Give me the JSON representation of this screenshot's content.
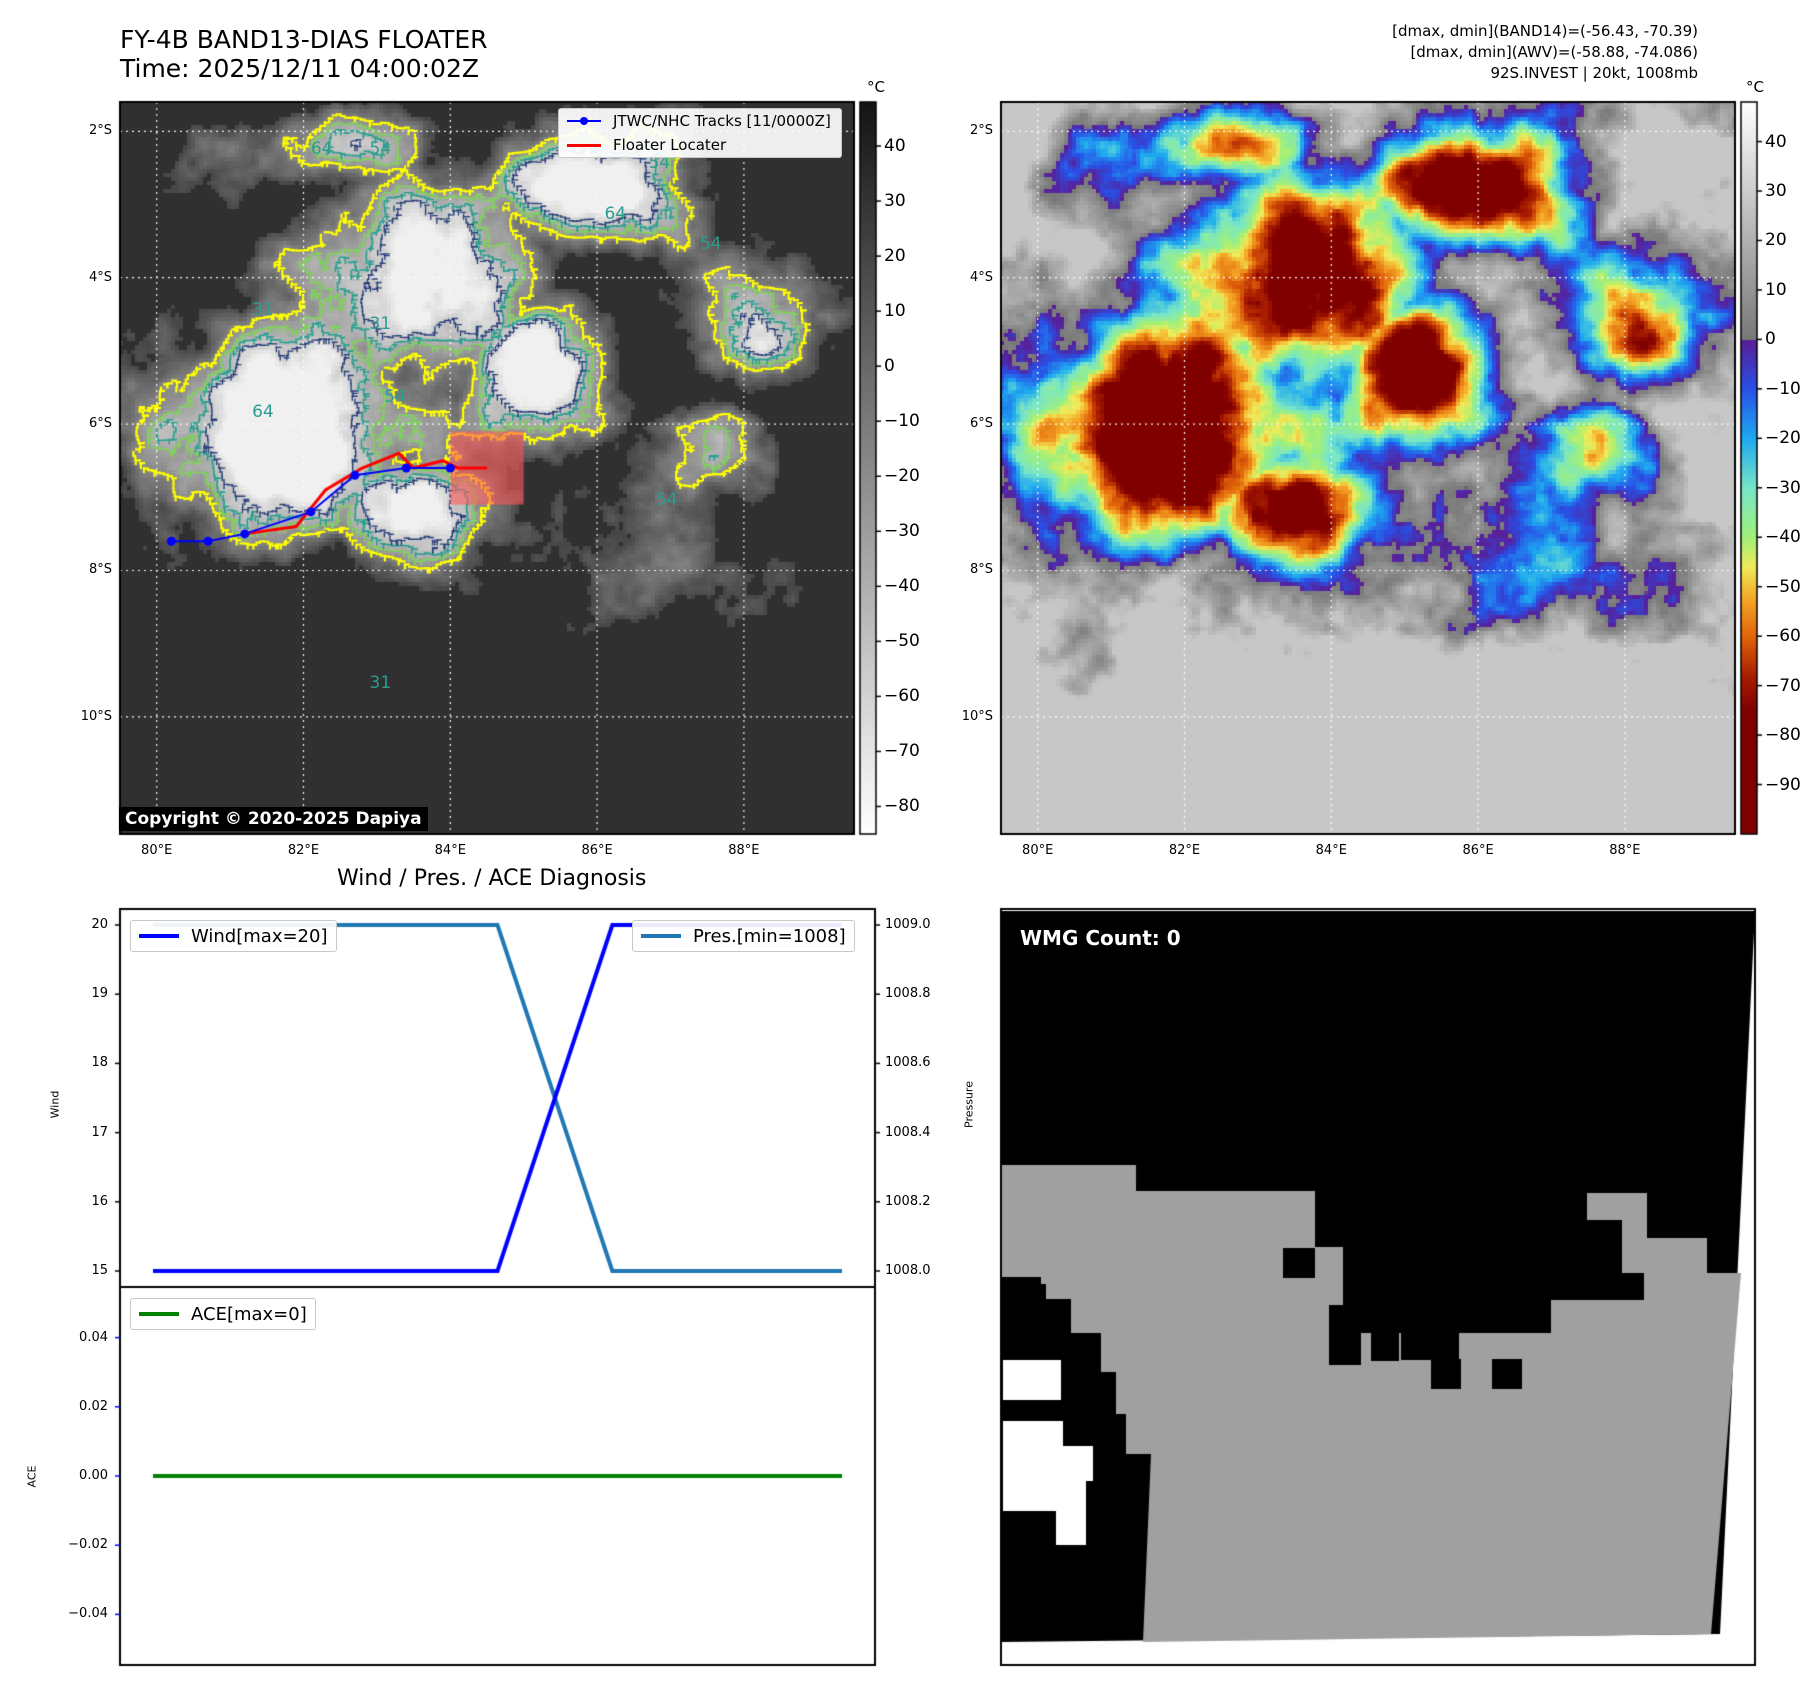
{
  "header": {
    "title_line1": "FY-4B BAND13-DIAS FLOATER",
    "title_line2": "Time: 2025/12/11 04:00:02Z",
    "info_line1": "[dmax, dmin](BAND14)=(-56.43, -70.39)",
    "info_line2": "[dmax, dmin](AWV)=(-58.88, -74.086)",
    "info_line3": "92S.INVEST | 20kt, 1008mb"
  },
  "map": {
    "lon_ticks": [
      "80°E",
      "82°E",
      "84°E",
      "86°E",
      "88°E"
    ],
    "lat_ticks": [
      "2°S",
      "4°S",
      "6°S",
      "8°S",
      "10°S"
    ],
    "colorbar_unit": "°C",
    "copyright": "Copyright © 2020-2025 Dapiya",
    "contour_labels": [
      "64",
      "54",
      "31"
    ],
    "legend": {
      "track_label": "JTWC/NHC Tracks [11/0000Z]",
      "floater_label": "Floater Locater"
    },
    "track_points": [
      [
        80.2,
        -7.6
      ],
      [
        80.7,
        -7.6
      ],
      [
        81.2,
        -7.5
      ],
      [
        82.1,
        -7.2
      ],
      [
        82.7,
        -6.7
      ],
      [
        83.4,
        -6.6
      ],
      [
        84.0,
        -6.6
      ]
    ],
    "floater_path": [
      [
        81.2,
        -7.5
      ],
      [
        81.9,
        -7.4
      ],
      [
        82.3,
        -6.9
      ],
      [
        82.8,
        -6.6
      ],
      [
        83.3,
        -6.4
      ],
      [
        83.5,
        -6.6
      ],
      [
        83.9,
        -6.5
      ],
      [
        84.1,
        -6.6
      ],
      [
        84.5,
        -6.6
      ]
    ],
    "floater_box": {
      "lon": [
        84.0,
        85.0
      ],
      "lat": [
        -6.1,
        -7.1
      ]
    },
    "colors": {
      "track": "#0000ff",
      "floater": "#ff0000",
      "contour_yellow": "#ffff00",
      "contour_green": "#7fd35a",
      "contour_teal": "#27a08e",
      "contour_navy": "#29407a"
    }
  },
  "colorbar_left": {
    "ticks": [
      "40",
      "30",
      "20",
      "10",
      "0",
      "−10",
      "−20",
      "−30",
      "−40",
      "−50",
      "−60",
      "−70",
      "−80"
    ]
  },
  "colorbar_right": {
    "ticks": [
      "40",
      "30",
      "20",
      "10",
      "0",
      "−10",
      "−20",
      "−30",
      "−40",
      "−50",
      "−60",
      "−70",
      "−80",
      "−90"
    ]
  },
  "diagnosis": {
    "title": "Wind / Pres. / ACE Diagnosis"
  },
  "chart_data": [
    {
      "type": "line",
      "title": "Wind / Pres. / ACE Diagnosis",
      "ylabel": "Wind",
      "y2label": "Pressure",
      "ylim": [
        15,
        20
      ],
      "y2lim": [
        1008.0,
        1009.0
      ],
      "y_ticks": [
        "20",
        "19",
        "18",
        "17",
        "16",
        "15"
      ],
      "y2_ticks": [
        "1009.0",
        "1008.8",
        "1008.6",
        "1008.4",
        "1008.2",
        "1008.0"
      ],
      "x": [
        0,
        1,
        2,
        3,
        4,
        5,
        6
      ],
      "series": [
        {
          "name": "Wind[max=20]",
          "axis": "left",
          "color": "#0000ff",
          "values": [
            15,
            15,
            15,
            15,
            20,
            20,
            20
          ]
        },
        {
          "name": "Pres.[min=1008]",
          "axis": "right",
          "color": "#1f77b4",
          "values": [
            1009,
            1009,
            1009,
            1009,
            1008,
            1008,
            1008
          ]
        }
      ]
    },
    {
      "type": "line",
      "ylabel": "ACE",
      "ylim": [
        -0.05,
        0.05
      ],
      "y_ticks": [
        "0.04",
        "0.02",
        "0.00",
        "−0.02",
        "−0.04"
      ],
      "x": [
        0,
        1,
        2,
        3,
        4,
        5,
        6
      ],
      "series": [
        {
          "name": "ACE[max=0]",
          "color": "#008000",
          "values": [
            0,
            0,
            0,
            0,
            0,
            0,
            0
          ]
        }
      ]
    }
  ],
  "wmg": {
    "label": "WMG Count: 0"
  }
}
